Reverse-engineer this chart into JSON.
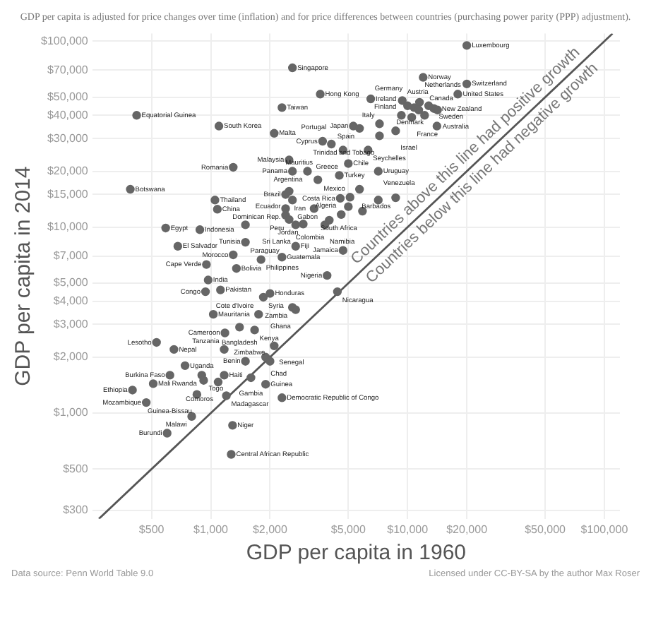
{
  "chart_data": {
    "type": "scatter",
    "subtitle": "GDP per capita is adjusted for price changes over time (inflation) and for price differences between countries (purchasing power parity (PPP) adjustment).",
    "xlabel": "GDP per capita in 1960",
    "ylabel": "GDP per capita in 2014",
    "log": "xy",
    "grid": true,
    "legend": false,
    "marker": "circle",
    "xlim": [
      250,
      120000
    ],
    "ylim": [
      270,
      110000
    ],
    "xticks": [
      {
        "value": 500,
        "label": "$500"
      },
      {
        "value": 1000,
        "label": "$1,000"
      },
      {
        "value": 2000,
        "label": "$2,000"
      },
      {
        "value": 5000,
        "label": "$5,000"
      },
      {
        "value": 10000,
        "label": "$10,000"
      },
      {
        "value": 20000,
        "label": "$20,000"
      },
      {
        "value": 50000,
        "label": "$50,000"
      },
      {
        "value": 100000,
        "label": "$100,000"
      }
    ],
    "yticks": [
      {
        "value": 300,
        "label": "$300"
      },
      {
        "value": 500,
        "label": "$500"
      },
      {
        "value": 1000,
        "label": "$1,000"
      },
      {
        "value": 2000,
        "label": "$2,000"
      },
      {
        "value": 3000,
        "label": "$3,000"
      },
      {
        "value": 4000,
        "label": "$4,000"
      },
      {
        "value": 5000,
        "label": "$5,000"
      },
      {
        "value": 7000,
        "label": "$7,000"
      },
      {
        "value": 10000,
        "label": "$10,000"
      },
      {
        "value": 15000,
        "label": "$15,000"
      },
      {
        "value": 20000,
        "label": "$20,000"
      },
      {
        "value": 30000,
        "label": "$30,000"
      },
      {
        "value": 40000,
        "label": "$40,000"
      },
      {
        "value": 50000,
        "label": "$50,000"
      },
      {
        "value": 70000,
        "label": "$70,000"
      },
      {
        "value": 100000,
        "label": "$100,000"
      }
    ],
    "series": [
      {
        "color": "#666666",
        "x": [
          20000,
          12000,
          20000,
          18000,
          6500,
          9400,
          11500,
          10000,
          12800,
          13600,
          10800,
          11400,
          14200,
          9300,
          12200,
          10500,
          5300,
          5700,
          7200,
          8700,
          14100,
          7200,
          6300,
          5000,
          7100,
          4500,
          5700,
          4550,
          5100,
          7100,
          8700,
          5000,
          5900,
          4600,
          4000,
          3800,
          3350,
          2600,
          3600,
          2300,
          420,
          1100,
          2100,
          3700,
          4100,
          4700,
          2500,
          3100,
          1300,
          2600,
          3500,
          390,
          1050,
          2500,
          2400,
          2600,
          1080,
          2400,
          2400,
          2500,
          2700,
          2950,
          590,
          880,
          1500,
          680,
          1500,
          2700,
          4700,
          1300,
          1800,
          2300,
          950,
          1350,
          3900,
          970,
          940,
          1120,
          1850,
          2000,
          4400,
          2600,
          2700,
          1030,
          1750,
          1400,
          1180,
          1670,
          530,
          650,
          1170,
          2100,
          1900,
          1500,
          2000,
          740,
          620,
          900,
          1170,
          1600,
          920,
          1090,
          1900,
          510,
          400,
          850,
          1200,
          2300,
          470,
          800,
          1290,
          600,
          1270
        ],
        "values": [
          95000,
          64000,
          59000,
          52000,
          49000,
          48000,
          47000,
          45000,
          45000,
          43500,
          44000,
          42700,
          42700,
          40000,
          40000,
          39000,
          35000,
          34000,
          36000,
          33000,
          35000,
          31000,
          26000,
          22000,
          20000,
          19000,
          16000,
          14300,
          14500,
          14000,
          14400,
          12900,
          12200,
          11700,
          10900,
          10300,
          12600,
          72000,
          52000,
          44000,
          40000,
          35000,
          32000,
          29000,
          28000,
          26000,
          23000,
          20000,
          21000,
          20000,
          18000,
          16000,
          14000,
          15600,
          15000,
          14000,
          12500,
          12600,
          11600,
          11000,
          10300,
          10400,
          9900,
          9700,
          10300,
          7900,
          8300,
          7900,
          7500,
          7100,
          6700,
          6900,
          6300,
          6000,
          5500,
          5200,
          4500,
          4600,
          4200,
          4400,
          4500,
          3700,
          3600,
          3400,
          3400,
          2900,
          2700,
          2800,
          2400,
          2200,
          2200,
          2300,
          2000,
          1900,
          1900,
          1800,
          1600,
          1600,
          1600,
          1550,
          1500,
          1470,
          1430,
          1440,
          1330,
          1260,
          1240,
          1210,
          1140,
          960,
          860,
          780,
          600
        ]
      },
      {
        "type": "line",
        "marker": "none",
        "color": "#555555",
        "x": [
          270,
          110000
        ],
        "values": [
          270,
          110000
        ]
      }
    ],
    "annotations": [
      "Countries above this line had positive growth",
      "Countries below this line had negative growth",
      "Data source: Penn World Table 9.0",
      "Licensed under CC-BY-SA by the author Max Roser",
      {
        "text": "Luxembourg",
        "x": 20000,
        "y": 95000
      },
      {
        "text": "Norway",
        "x": 12000,
        "y": 64000
      },
      {
        "text": "Switzerland",
        "x": 20000,
        "y": 59000
      },
      {
        "text": "United States",
        "x": 18000,
        "y": 52000
      },
      {
        "text": "Ireland",
        "x": 6500,
        "y": 49000
      },
      {
        "text": "Austria",
        "x": 9400,
        "y": 48000
      },
      {
        "text": "Netherlands",
        "x": 11500,
        "y": 47000
      },
      {
        "text": "Germany",
        "x": 10000,
        "y": 45000
      },
      {
        "text": "Denmark",
        "x": 12800,
        "y": 45000
      },
      {
        "text": "Sweden",
        "x": 13600,
        "y": 43500
      },
      {
        "text": "Australia",
        "x": 14200,
        "y": 42700
      },
      {
        "text": "Finland",
        "x": 9300,
        "y": 40000
      },
      {
        "text": "Canada",
        "x": 12200,
        "y": 40000
      },
      {
        "text": "France",
        "x": 10500,
        "y": 39000
      },
      {
        "text": "Japan",
        "x": 5300,
        "y": 35000
      },
      {
        "text": "Spain",
        "x": 5700,
        "y": 34000
      },
      {
        "text": "Italy",
        "x": 7200,
        "y": 36000
      },
      {
        "text": "Israel",
        "x": 8700,
        "y": 33000
      },
      {
        "text": "New Zealand",
        "x": 14100,
        "y": 35000
      },
      {
        "text": "Trinidad and Tobago",
        "x": 7200,
        "y": 31000
      },
      {
        "text": "Seychelles",
        "x": 6300,
        "y": 26000
      },
      {
        "text": "Chile",
        "x": 5000,
        "y": 22000
      },
      {
        "text": "Uruguay",
        "x": 7100,
        "y": 20000
      },
      {
        "text": "Turkey",
        "x": 4500,
        "y": 19000
      },
      {
        "text": "Costa Rica",
        "x": 4550,
        "y": 14300
      },
      {
        "text": "Mexico",
        "x": 5100,
        "y": 14500
      },
      {
        "text": "Venezuela",
        "x": 7100,
        "y": 14000
      },
      {
        "text": "Barbados",
        "x": 8700,
        "y": 14400
      },
      {
        "text": "South Africa",
        "x": 5900,
        "y": 12200
      },
      {
        "text": "Algeria",
        "x": 4600,
        "y": 11700
      },
      {
        "text": "Colombia",
        "x": 4000,
        "y": 10900
      },
      {
        "text": "Namibia",
        "x": 3800,
        "y": 10300
      },
      {
        "text": "Singapore",
        "x": 2600,
        "y": 72000
      },
      {
        "text": "Hong Kong",
        "x": 3600,
        "y": 52000
      },
      {
        "text": "Taiwan",
        "x": 2300,
        "y": 44000
      },
      {
        "text": "Equatorial Guinea",
        "x": 420,
        "y": 40000
      },
      {
        "text": "South Korea",
        "x": 1100,
        "y": 35000
      },
      {
        "text": "Malta",
        "x": 2100,
        "y": 32000
      },
      {
        "text": "Cyprus",
        "x": 3700,
        "y": 29000
      },
      {
        "text": "Portugal",
        "x": 4100,
        "y": 28000
      },
      {
        "text": "Greece",
        "x": 4700,
        "y": 26000
      },
      {
        "text": "Malaysia",
        "x": 2500,
        "y": 23000
      },
      {
        "text": "Argentina",
        "x": 3100,
        "y": 20000
      },
      {
        "text": "Romania",
        "x": 1300,
        "y": 21000
      },
      {
        "text": "Panama",
        "x": 2600,
        "y": 20000
      },
      {
        "text": "Mauritius",
        "x": 3500,
        "y": 18000
      },
      {
        "text": "Botswana",
        "x": 390,
        "y": 16000
      },
      {
        "text": "Thailand",
        "x": 1050,
        "y": 14000
      },
      {
        "text": "Iran",
        "x": 2500,
        "y": 15600
      },
      {
        "text": "Brazil",
        "x": 2400,
        "y": 15000
      },
      {
        "text": "Gabon",
        "x": 2600,
        "y": 14000
      },
      {
        "text": "China",
        "x": 1080,
        "y": 12500
      },
      {
        "text": "Dominican Rep.",
        "x": 2400,
        "y": 12600
      },
      {
        "text": "Ecuador",
        "x": 2400,
        "y": 11600
      },
      {
        "text": "Peru",
        "x": 2500,
        "y": 11000
      },
      {
        "text": "Sri Lanka",
        "x": 2700,
        "y": 10300
      },
      {
        "text": "Jordan",
        "x": 2950,
        "y": 10400
      },
      {
        "text": "Egypt",
        "x": 590,
        "y": 9900
      },
      {
        "text": "Indonesia",
        "x": 880,
        "y": 9700
      },
      {
        "text": "Tunisia",
        "x": 1500,
        "y": 10300
      },
      {
        "text": "El Salvador",
        "x": 680,
        "y": 7900
      },
      {
        "text": "Paraguay",
        "x": 1500,
        "y": 8300
      },
      {
        "text": "Fiji",
        "x": 2700,
        "y": 7900
      },
      {
        "text": "Jamaica",
        "x": 4700,
        "y": 7500
      },
      {
        "text": "Morocco",
        "x": 1300,
        "y": 7100
      },
      {
        "text": "Philippines",
        "x": 1800,
        "y": 6700
      },
      {
        "text": "Guatemala",
        "x": 2300,
        "y": 6900
      },
      {
        "text": "Cape Verde",
        "x": 950,
        "y": 6300
      },
      {
        "text": "Bolivia",
        "x": 1350,
        "y": 6000
      },
      {
        "text": "Nigeria",
        "x": 3900,
        "y": 5500
      },
      {
        "text": "India",
        "x": 970,
        "y": 5200
      },
      {
        "text": "Congo",
        "x": 940,
        "y": 4500
      },
      {
        "text": "Pakistan",
        "x": 1120,
        "y": 4600
      },
      {
        "text": "Syria",
        "x": 1850,
        "y": 4200
      },
      {
        "text": "Honduras",
        "x": 2000,
        "y": 4400
      },
      {
        "text": "Nicaragua",
        "x": 4400,
        "y": 4500
      },
      {
        "text": "Zambia",
        "x": 2600,
        "y": 3700
      },
      {
        "text": "Ghana",
        "x": 2700,
        "y": 3600
      },
      {
        "text": "Mauritania",
        "x": 1030,
        "y": 3400
      },
      {
        "text": "Cote d'Ivoire",
        "x": 1750,
        "y": 3400
      },
      {
        "text": "Bangladesh",
        "x": 1400,
        "y": 2900
      },
      {
        "text": "Cameroon",
        "x": 1180,
        "y": 2700
      },
      {
        "text": "Kenya",
        "x": 1670,
        "y": 2800
      },
      {
        "text": "Lesotho",
        "x": 530,
        "y": 2400
      },
      {
        "text": "Nepal",
        "x": 650,
        "y": 2200
      },
      {
        "text": "Tanzania",
        "x": 1170,
        "y": 2200
      },
      {
        "text": "Senegal",
        "x": 2100,
        "y": 2300
      },
      {
        "text": "Chad",
        "x": 1900,
        "y": 2000
      },
      {
        "text": "Benin",
        "x": 1500,
        "y": 1900
      },
      {
        "text": "Zimbabwe",
        "x": 2000,
        "y": 1900
      },
      {
        "text": "Uganda",
        "x": 740,
        "y": 1800
      },
      {
        "text": "Burkina Faso",
        "x": 620,
        "y": 1600
      },
      {
        "text": "Rwanda",
        "x": 900,
        "y": 1600
      },
      {
        "text": "Haiti",
        "x": 1170,
        "y": 1600
      },
      {
        "text": "Gambia",
        "x": 1600,
        "y": 1550
      },
      {
        "text": "Togo",
        "x": 920,
        "y": 1500
      },
      {
        "text": "Comoros",
        "x": 1090,
        "y": 1470
      },
      {
        "text": "Guinea",
        "x": 1900,
        "y": 1430
      },
      {
        "text": "Mali",
        "x": 510,
        "y": 1440
      },
      {
        "text": "Ethiopia",
        "x": 400,
        "y": 1330
      },
      {
        "text": "Guinea-Bissau",
        "x": 850,
        "y": 1260
      },
      {
        "text": "Madagascar",
        "x": 1200,
        "y": 1240
      },
      {
        "text": "Democratic Republic of Congo",
        "x": 2300,
        "y": 1210
      },
      {
        "text": "Mozambique",
        "x": 470,
        "y": 1140
      },
      {
        "text": "Malawi",
        "x": 800,
        "y": 960
      },
      {
        "text": "Niger",
        "x": 1290,
        "y": 860
      },
      {
        "text": "Burundi",
        "x": 600,
        "y": 780
      },
      {
        "text": "Central African Republic",
        "x": 1270,
        "y": 600
      }
    ]
  }
}
